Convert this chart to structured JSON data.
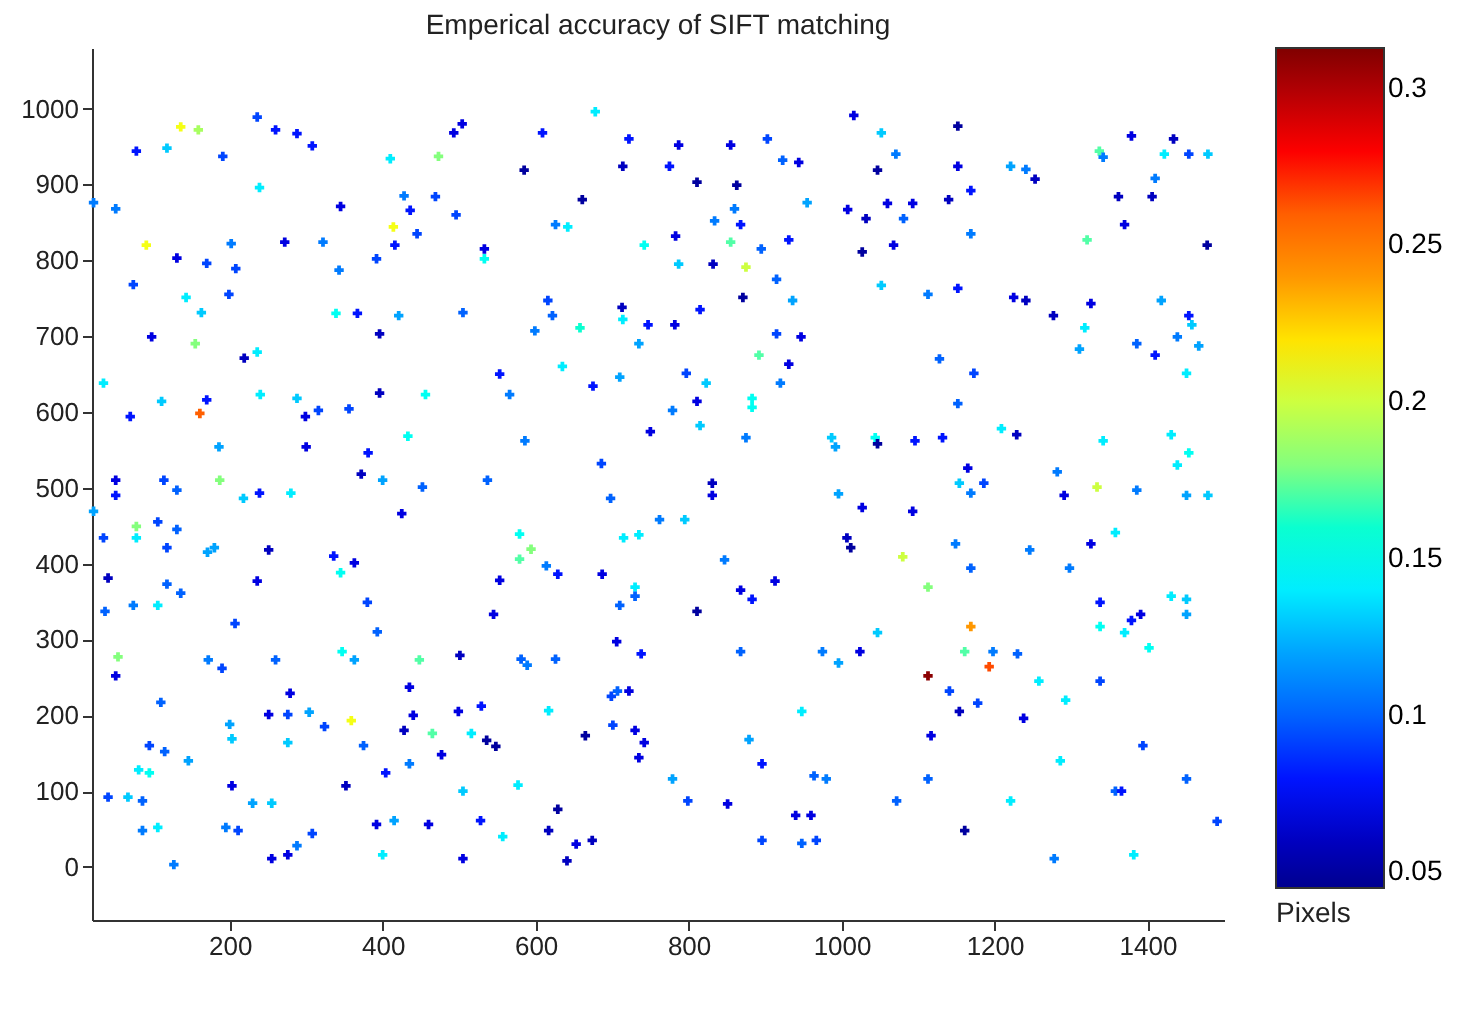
{
  "chart_data": {
    "type": "scatter",
    "title": "Emperical accuracy of SIFT matching",
    "clabel": "Pixels",
    "marker": "cross",
    "grid": false,
    "xlim": [
      20,
      1500
    ],
    "ylim": [
      -70,
      1080
    ],
    "xticks": [
      200,
      400,
      600,
      800,
      1000,
      1200,
      1400
    ],
    "yticks": [
      0,
      100,
      200,
      300,
      400,
      500,
      600,
      700,
      800,
      900,
      1000
    ],
    "clim": [
      0.045,
      0.313
    ],
    "cticks": [
      0.05,
      0.1,
      0.15,
      0.2,
      0.25,
      0.3
    ],
    "x": [
      22,
      51,
      136,
      159,
      78,
      118,
      91,
      74,
      98,
      155,
      161,
      35,
      70,
      111,
      236,
      260,
      288,
      308,
      191,
      239,
      272,
      202,
      131,
      170,
      208,
      199,
      143,
      163,
      219,
      236,
      240,
      170,
      186,
      288,
      299,
      316,
      300,
      322,
      345,
      343,
      339,
      367,
      396,
      356,
      381,
      396,
      414,
      416,
      392,
      410,
      428,
      436,
      445,
      421,
      473,
      469,
      496,
      504,
      493,
      505,
      456,
      433,
      533,
      533,
      553,
      566,
      585,
      609,
      626,
      642,
      661,
      616,
      622,
      658,
      599,
      635,
      675,
      678,
      713,
      586,
      686,
      1016,
      1052,
      1152,
      722,
      787,
      855,
      903,
      714,
      775,
      811,
      863,
      923,
      944,
      955,
      860,
      834,
      868,
      742,
      783,
      855,
      895,
      931,
      875,
      832,
      787,
      915,
      871,
      936,
      714,
      747,
      782,
      815,
      735,
      710,
      797,
      823,
      915,
      947,
      892,
      931,
      920,
      883,
      883,
      811,
      779,
      815,
      750,
      875,
      987,
      992,
      1044,
      1047,
      1096,
      1132,
      1047,
      1071,
      1152,
      1169,
      1008,
      1032,
      1060,
      1093,
      1081,
      1140,
      1169,
      1027,
      1068,
      1052,
      1113,
      1152,
      1221,
      1241,
      1253,
      1337,
      1342,
      1379,
      1434,
      1422,
      1454,
      1479,
      1410,
      1406,
      1362,
      1370,
      1321,
      1478,
      1225,
      1241,
      1277,
      1326,
      1318,
      1311,
      1418,
      1454,
      1458,
      1439,
      1467,
      1386,
      1410,
      1451,
      1128,
      1173,
      1152,
      1209,
      1229,
      1342,
      1431,
      1454,
      1439,
      51,
      22,
      51,
      114,
      131,
      187,
      218,
      239,
      280,
      78,
      78,
      106,
      131,
      35,
      118,
      41,
      118,
      136,
      74,
      106,
      37,
      171,
      180,
      251,
      236,
      207,
      54,
      51,
      172,
      190,
      260,
      279,
      110,
      95,
      115,
      146,
      200,
      203,
      251,
      276,
      276,
      81,
      95,
      41,
      67,
      86,
      86,
      106,
      127,
      203,
      195,
      211,
      230,
      255,
      255,
      276,
      288,
      308,
      304,
      324,
      336,
      345,
      363,
      372,
      400,
      380,
      347,
      363,
      359,
      352,
      375,
      392,
      404,
      400,
      415,
      435,
      428,
      440,
      435,
      393,
      425,
      452,
      448,
      465,
      477,
      460,
      505,
      505,
      516,
      499,
      501,
      529,
      536,
      548,
      545,
      553,
      579,
      579,
      594,
      537,
      614,
      629,
      581,
      589,
      626,
      617,
      577,
      557,
      528,
      617,
      629,
      653,
      641,
      674,
      665,
      687,
      698,
      699,
      701,
      706,
      710,
      715,
      831,
      831,
      762,
      795,
      735,
      996,
      1027,
      1093,
      1165,
      1154,
      1169,
      1186,
      1282,
      1291,
      1334,
      1386,
      1451,
      1479,
      1007,
      1012,
      847,
      868,
      883,
      913,
      811,
      730,
      730,
      738,
      1080,
      1113,
      1149,
      1169,
      1246,
      1298,
      1326,
      1358,
      1338,
      1379,
      1391,
      1431,
      1451,
      1451,
      1338,
      1370,
      1402,
      1169,
      1161,
      1193,
      1113,
      1198,
      1230,
      1141,
      1154,
      1178,
      1238,
      1258,
      1293,
      1338,
      1047,
      1024,
      996,
      975,
      868,
      948,
      896,
      879,
      779,
      799,
      851,
      940,
      960,
      964,
      980,
      896,
      948,
      967,
      1117,
      1113,
      1072,
      1161,
      1221,
      1278,
      1286,
      1358,
      1366,
      1394,
      1451,
      1491,
      1382,
      707,
      722,
      730,
      742,
      735
    ],
    "values": [
      876,
      868,
      976,
      972,
      944,
      948,
      820,
      768,
      699,
      690,
      598,
      638,
      594,
      614,
      989,
      972,
      967,
      951,
      937,
      896,
      824,
      822,
      803,
      796,
      789,
      755,
      751,
      731,
      671,
      679,
      623,
      616,
      554,
      618,
      594,
      602,
      554,
      824,
      871,
      787,
      730,
      730,
      703,
      604,
      546,
      625,
      844,
      820,
      802,
      934,
      885,
      866,
      835,
      727,
      937,
      884,
      860,
      980,
      968,
      731,
      623,
      568,
      815,
      802,
      650,
      623,
      919,
      968,
      847,
      844,
      880,
      747,
      727,
      711,
      707,
      660,
      634,
      996,
      738,
      562,
      532,
      991,
      968,
      977,
      960,
      952,
      952,
      960,
      924,
      924,
      903,
      899,
      932,
      929,
      876,
      868,
      852,
      847,
      820,
      832,
      824,
      815,
      827,
      791,
      795,
      795,
      775,
      751,
      747,
      722,
      715,
      715,
      735,
      690,
      646,
      651,
      638,
      703,
      699,
      675,
      663,
      638,
      618,
      606,
      614,
      602,
      582,
      574,
      566,
      566,
      554,
      566,
      558,
      562,
      566,
      919,
      940,
      924,
      892,
      867,
      855,
      875,
      875,
      855,
      880,
      835,
      811,
      820,
      767,
      755,
      763,
      924,
      920,
      907,
      944,
      936,
      964,
      960,
      940,
      940,
      940,
      908,
      884,
      884,
      847,
      827,
      820,
      751,
      747,
      727,
      743,
      711,
      683,
      747,
      727,
      715,
      699,
      687,
      690,
      675,
      651,
      670,
      651,
      611,
      578,
      570,
      562,
      570,
      546,
      530,
      510,
      469,
      490,
      510,
      497,
      510,
      486,
      493,
      493,
      449,
      434,
      455,
      445,
      434,
      421,
      381,
      373,
      361,
      345,
      345,
      337,
      415,
      421,
      418,
      377,
      321,
      277,
      252,
      273,
      262,
      273,
      229,
      217,
      160,
      152,
      140,
      188,
      169,
      201,
      201,
      164,
      128,
      124,
      92,
      92,
      87,
      48,
      52,
      3,
      107,
      52,
      48,
      84,
      84,
      11,
      16,
      28,
      44,
      204,
      185,
      410,
      388,
      401,
      518,
      510,
      349,
      284,
      273,
      193,
      107,
      160,
      56,
      124,
      16,
      61,
      136,
      180,
      200,
      237,
      310,
      466,
      501,
      273,
      176,
      148,
      56,
      11,
      100,
      176,
      205,
      279,
      212,
      167,
      159,
      333,
      378,
      439,
      406,
      419,
      510,
      397,
      386,
      274,
      266,
      274,
      206,
      108,
      40,
      61,
      48,
      76,
      30,
      8,
      35,
      173,
      386,
      486,
      225,
      187,
      297,
      345,
      434,
      506,
      490,
      458,
      458,
      438,
      492,
      474,
      469,
      526,
      506,
      493,
      506,
      521,
      490,
      501,
      497,
      490,
      490,
      434,
      421,
      405,
      365,
      353,
      377,
      337,
      369,
      357,
      281,
      409,
      369,
      426,
      394,
      418,
      394,
      426,
      441,
      349,
      325,
      333,
      357,
      353,
      333,
      317,
      309,
      289,
      317,
      284,
      264,
      252,
      284,
      281,
      232,
      205,
      216,
      196,
      245,
      220,
      245,
      309,
      284,
      269,
      284,
      284,
      205,
      136,
      168,
      116,
      87,
      83,
      68,
      68,
      120,
      116,
      35,
      31,
      35,
      173,
      116,
      87,
      48,
      87,
      11,
      140,
      100,
      100,
      160,
      116,
      60,
      16,
      232,
      232,
      180,
      164,
      144
    ],
    "cvalues": [
      0.11,
      0.11,
      0.21,
      0.19,
      0.08,
      0.13,
      0.21,
      0.09,
      0.07,
      0.18,
      0.26,
      0.14,
      0.08,
      0.13,
      0.09,
      0.08,
      0.08,
      0.08,
      0.09,
      0.14,
      0.07,
      0.11,
      0.07,
      0.09,
      0.09,
      0.09,
      0.14,
      0.13,
      0.06,
      0.14,
      0.14,
      0.08,
      0.12,
      0.13,
      0.07,
      0.09,
      0.07,
      0.11,
      0.07,
      0.11,
      0.15,
      0.08,
      0.06,
      0.09,
      0.08,
      0.06,
      0.21,
      0.08,
      0.09,
      0.14,
      0.11,
      0.08,
      0.09,
      0.12,
      0.18,
      0.09,
      0.09,
      0.07,
      0.07,
      0.1,
      0.15,
      0.15,
      0.07,
      0.15,
      0.08,
      0.11,
      0.05,
      0.08,
      0.11,
      0.14,
      0.05,
      0.09,
      0.1,
      0.16,
      0.11,
      0.14,
      0.08,
      0.14,
      0.06,
      0.11,
      0.09,
      0.07,
      0.13,
      0.05,
      0.08,
      0.07,
      0.07,
      0.09,
      0.06,
      0.08,
      0.05,
      0.05,
      0.1,
      0.07,
      0.12,
      0.11,
      0.11,
      0.08,
      0.15,
      0.07,
      0.17,
      0.1,
      0.08,
      0.2,
      0.06,
      0.13,
      0.1,
      0.05,
      0.12,
      0.14,
      0.08,
      0.07,
      0.08,
      0.12,
      0.12,
      0.09,
      0.13,
      0.09,
      0.07,
      0.17,
      0.07,
      0.11,
      0.15,
      0.15,
      0.07,
      0.11,
      0.13,
      0.07,
      0.11,
      0.13,
      0.12,
      0.15,
      0.05,
      0.08,
      0.08,
      0.05,
      0.11,
      0.07,
      0.08,
      0.07,
      0.06,
      0.07,
      0.07,
      0.1,
      0.06,
      0.11,
      0.05,
      0.07,
      0.13,
      0.11,
      0.08,
      0.12,
      0.11,
      0.06,
      0.17,
      0.11,
      0.07,
      0.06,
      0.14,
      0.09,
      0.13,
      0.11,
      0.06,
      0.06,
      0.07,
      0.17,
      0.05,
      0.07,
      0.06,
      0.06,
      0.07,
      0.14,
      0.12,
      0.12,
      0.08,
      0.13,
      0.11,
      0.12,
      0.1,
      0.08,
      0.14,
      0.1,
      0.09,
      0.1,
      0.14,
      0.06,
      0.14,
      0.14,
      0.15,
      0.14,
      0.07,
      0.12,
      0.08,
      0.09,
      0.1,
      0.18,
      0.13,
      0.08,
      0.14,
      0.18,
      0.14,
      0.09,
      0.1,
      0.09,
      0.09,
      0.06,
      0.1,
      0.1,
      0.11,
      0.14,
      0.1,
      0.12,
      0.12,
      0.06,
      0.07,
      0.09,
      0.18,
      0.07,
      0.11,
      0.09,
      0.1,
      0.07,
      0.1,
      0.09,
      0.1,
      0.12,
      0.12,
      0.13,
      0.07,
      0.09,
      0.13,
      0.14,
      0.15,
      0.09,
      0.13,
      0.1,
      0.11,
      0.14,
      0.11,
      0.07,
      0.11,
      0.09,
      0.12,
      0.13,
      0.07,
      0.07,
      0.11,
      0.09,
      0.12,
      0.09,
      0.08,
      0.15,
      0.07,
      0.06,
      0.12,
      0.09,
      0.15,
      0.12,
      0.21,
      0.06,
      0.1,
      0.07,
      0.08,
      0.14,
      0.12,
      0.11,
      0.06,
      0.07,
      0.07,
      0.1,
      0.07,
      0.1,
      0.17,
      0.17,
      0.07,
      0.07,
      0.07,
      0.13,
      0.14,
      0.07,
      0.06,
      0.08,
      0.05,
      0.05,
      0.07,
      0.07,
      0.15,
      0.17,
      0.18,
      0.1,
      0.11,
      0.08,
      0.1,
      0.11,
      0.1,
      0.14,
      0.14,
      0.14,
      0.08,
      0.06,
      0.05,
      0.07,
      0.06,
      0.06,
      0.05,
      0.07,
      0.1,
      0.09,
      0.09,
      0.07,
      0.1,
      0.14,
      0.06,
      0.07,
      0.11,
      0.13,
      0.14,
      0.12,
      0.07,
      0.07,
      0.07,
      0.13,
      0.11,
      0.09,
      0.11,
      0.07,
      0.2,
      0.11,
      0.12,
      0.13,
      0.06,
      0.05,
      0.11,
      0.07,
      0.08,
      0.07,
      0.05,
      0.14,
      0.1,
      0.08,
      0.2,
      0.18,
      0.11,
      0.1,
      0.11,
      0.11,
      0.07,
      0.14,
      0.08,
      0.08,
      0.07,
      0.14,
      0.13,
      0.12,
      0.15,
      0.14,
      0.15,
      0.24,
      0.17,
      0.267,
      0.31,
      0.11,
      0.1,
      0.09,
      0.06,
      0.09,
      0.07,
      0.14,
      0.14,
      0.09,
      0.13,
      0.07,
      0.12,
      0.11,
      0.1,
      0.14,
      0.08,
      0.12,
      0.12,
      0.09,
      0.07,
      0.07,
      0.07,
      0.1,
      0.11,
      0.09,
      0.1,
      0.09,
      0.07,
      0.1,
      0.1,
      0.05,
      0.14,
      0.11,
      0.14,
      0.1,
      0.08,
      0.09,
      0.1,
      0.09,
      0.14,
      0.1,
      0.07,
      0.07,
      0.07,
      0.07
    ]
  }
}
